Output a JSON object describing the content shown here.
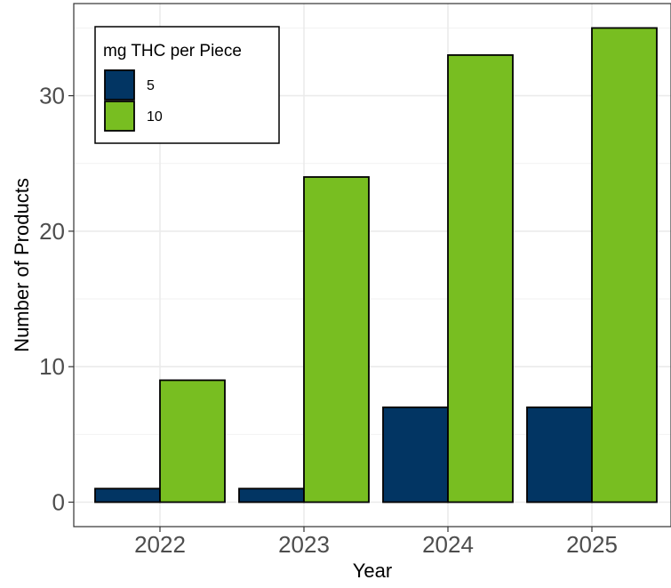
{
  "chart_data": {
    "type": "bar",
    "categories": [
      "2022",
      "2023",
      "2024",
      "2025"
    ],
    "series": [
      {
        "name": "5",
        "values": [
          1,
          1,
          7,
          7
        ],
        "color": "#023563"
      },
      {
        "name": "10",
        "values": [
          9,
          24,
          33,
          35
        ],
        "color": "#78BE21"
      }
    ],
    "xlabel": "Year",
    "ylabel": "Number of Products",
    "ylim": [
      0,
      36.8
    ],
    "yticks": [
      0,
      10,
      20,
      30
    ],
    "legend": {
      "title": "mg THC per Piece",
      "placement": "top-left"
    },
    "grid": true,
    "bar_outline": "#000000",
    "panel_border": "#333333"
  }
}
